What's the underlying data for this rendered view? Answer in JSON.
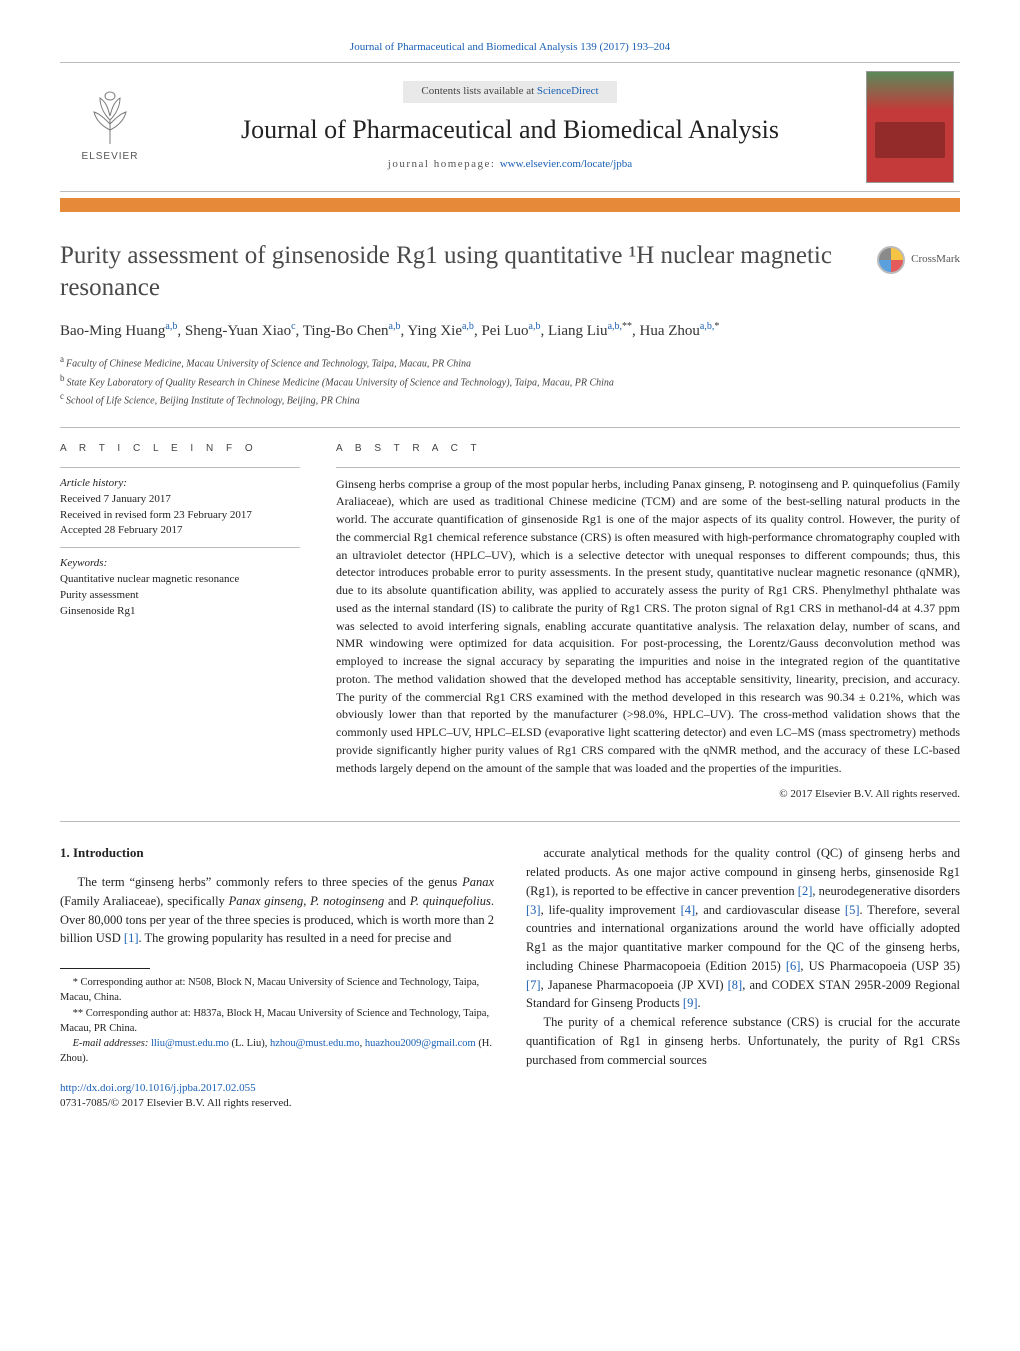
{
  "citation": "Journal of Pharmaceutical and Biomedical Analysis 139 (2017) 193–204",
  "masthead": {
    "publisher_brand": "ELSEVIER",
    "contents_prefix": "Contents lists available at ",
    "contents_link": "ScienceDirect",
    "journal_name": "Journal of Pharmaceutical and Biomedical Analysis",
    "homepage_label": "journal homepage: ",
    "homepage_url": "www.elsevier.com/locate/jpba"
  },
  "colors": {
    "accent_bar": "#e68a3a",
    "link": "#1a5fb4",
    "rule": "#bbbbbb",
    "text": "#222222",
    "title_color": "#4a4a4a",
    "contents_bg": "#e9e9e9",
    "cover_top": "#5a8a5a",
    "cover_main": "#c43a3a"
  },
  "title": "Purity assessment of ginsenoside Rg1 using quantitative ¹H nuclear magnetic resonance",
  "crossmark_label": "CrossMark",
  "authors_html": "Bao-Ming Huang<sup>a,b</sup>, Sheng-Yuan Xiao<sup>c</sup>, Ting-Bo Chen<sup>a,b</sup>, Ying Xie<sup>a,b</sup>, Pei Luo<sup>a,b</sup>, Liang Liu<sup>a,b,</sup><sup class=\"sym\">**</sup>, Hua Zhou<sup>a,b,</sup><sup class=\"sym\">*</sup>",
  "affiliations": {
    "a": "Faculty of Chinese Medicine, Macau University of Science and Technology, Taipa, Macau, PR China",
    "b": "State Key Laboratory of Quality Research in Chinese Medicine (Macau University of Science and Technology), Taipa, Macau, PR China",
    "c": "School of Life Science, Beijing Institute of Technology, Beijing, PR China"
  },
  "article_info": {
    "heading": "A R T I C L E   I N F O",
    "history_label": "Article history:",
    "received": "Received 7 January 2017",
    "revised": "Received in revised form 23 February 2017",
    "accepted": "Accepted 28 February 2017",
    "keywords_label": "Keywords:",
    "keywords": [
      "Quantitative nuclear magnetic resonance",
      "Purity assessment",
      "Ginsenoside Rg1"
    ]
  },
  "abstract": {
    "heading": "A B S T R A C T",
    "text": "Ginseng herbs comprise a group of the most popular herbs, including Panax ginseng, P. notoginseng and P. quinquefolius (Family Araliaceae), which are used as traditional Chinese medicine (TCM) and are some of the best-selling natural products in the world. The accurate quantification of ginsenoside Rg1 is one of the major aspects of its quality control. However, the purity of the commercial Rg1 chemical reference substance (CRS) is often measured with high-performance chromatography coupled with an ultraviolet detector (HPLC–UV), which is a selective detector with unequal responses to different compounds; thus, this detector introduces probable error to purity assessments. In the present study, quantitative nuclear magnetic resonance (qNMR), due to its absolute quantification ability, was applied to accurately assess the purity of Rg1 CRS. Phenylmethyl phthalate was used as the internal standard (IS) to calibrate the purity of Rg1 CRS. The proton signal of Rg1 CRS in methanol-d4 at 4.37 ppm was selected to avoid interfering signals, enabling accurate quantitative analysis. The relaxation delay, number of scans, and NMR windowing were optimized for data acquisition. For post-processing, the Lorentz/Gauss deconvolution method was employed to increase the signal accuracy by separating the impurities and noise in the integrated region of the quantitative proton. The method validation showed that the developed method has acceptable sensitivity, linearity, precision, and accuracy. The purity of the commercial Rg1 CRS examined with the method developed in this research was 90.34 ± 0.21%, which was obviously lower than that reported by the manufacturer (>98.0%, HPLC–UV). The cross-method validation shows that the commonly used HPLC–UV, HPLC–ELSD (evaporative light scattering detector) and even LC–MS (mass spectrometry) methods provide significantly higher purity values of Rg1 CRS compared with the qNMR method, and the accuracy of these LC-based methods largely depend on the amount of the sample that was loaded and the properties of the impurities.",
    "copyright": "© 2017 Elsevier B.V. All rights reserved."
  },
  "body": {
    "section_number": "1.",
    "section_title": "Introduction",
    "p1": "The term “ginseng herbs” commonly refers to three species of the genus Panax (Family Araliaceae), specifically Panax ginseng, P. notoginseng and P. quinquefolius. Over 80,000 tons per year of the three species is produced, which is worth more than 2 billion USD [1]. The growing popularity has resulted in a need for precise and",
    "p2": "accurate analytical methods for the quality control (QC) of ginseng herbs and related products. As one major active compound in ginseng herbs, ginsenoside Rg1 (Rg1), is reported to be effective in cancer prevention [2], neurodegenerative disorders [3], life-quality improvement [4], and cardiovascular disease [5]. Therefore, several countries and international organizations around the world have officially adopted Rg1 as the major quantitative marker compound for the QC of the ginseng herbs, including Chinese Pharmacopoeia (Edition 2015) [6], US Pharmacopoeia (USP 35) [7], Japanese Pharmacopoeia (JP XVI) [8], and CODEX STAN 295R-2009 Regional Standard for Ginseng Products [9].",
    "p3": "The purity of a chemical reference substance (CRS) is crucial for the accurate quantification of Rg1 in ginseng herbs. Unfortunately, the purity of Rg1 CRSs purchased from commercial sources"
  },
  "footnotes": {
    "c1": "* Corresponding author at: N508, Block N, Macau University of Science and Technology, Taipa, Macau, China.",
    "c2": "** Corresponding author at: H837a, Block H, Macau University of Science and Technology, Taipa, Macau, PR China.",
    "email_label": "E-mail addresses:",
    "emails_line": " lliu@must.edu.mo (L. Liu), hzhou@must.edu.mo, huazhou2009@gmail.com (H. Zhou)."
  },
  "doi": {
    "url": "http://dx.doi.org/10.1016/j.jpba.2017.02.055",
    "issn_line": "0731-7085/© 2017 Elsevier B.V. All rights reserved."
  }
}
